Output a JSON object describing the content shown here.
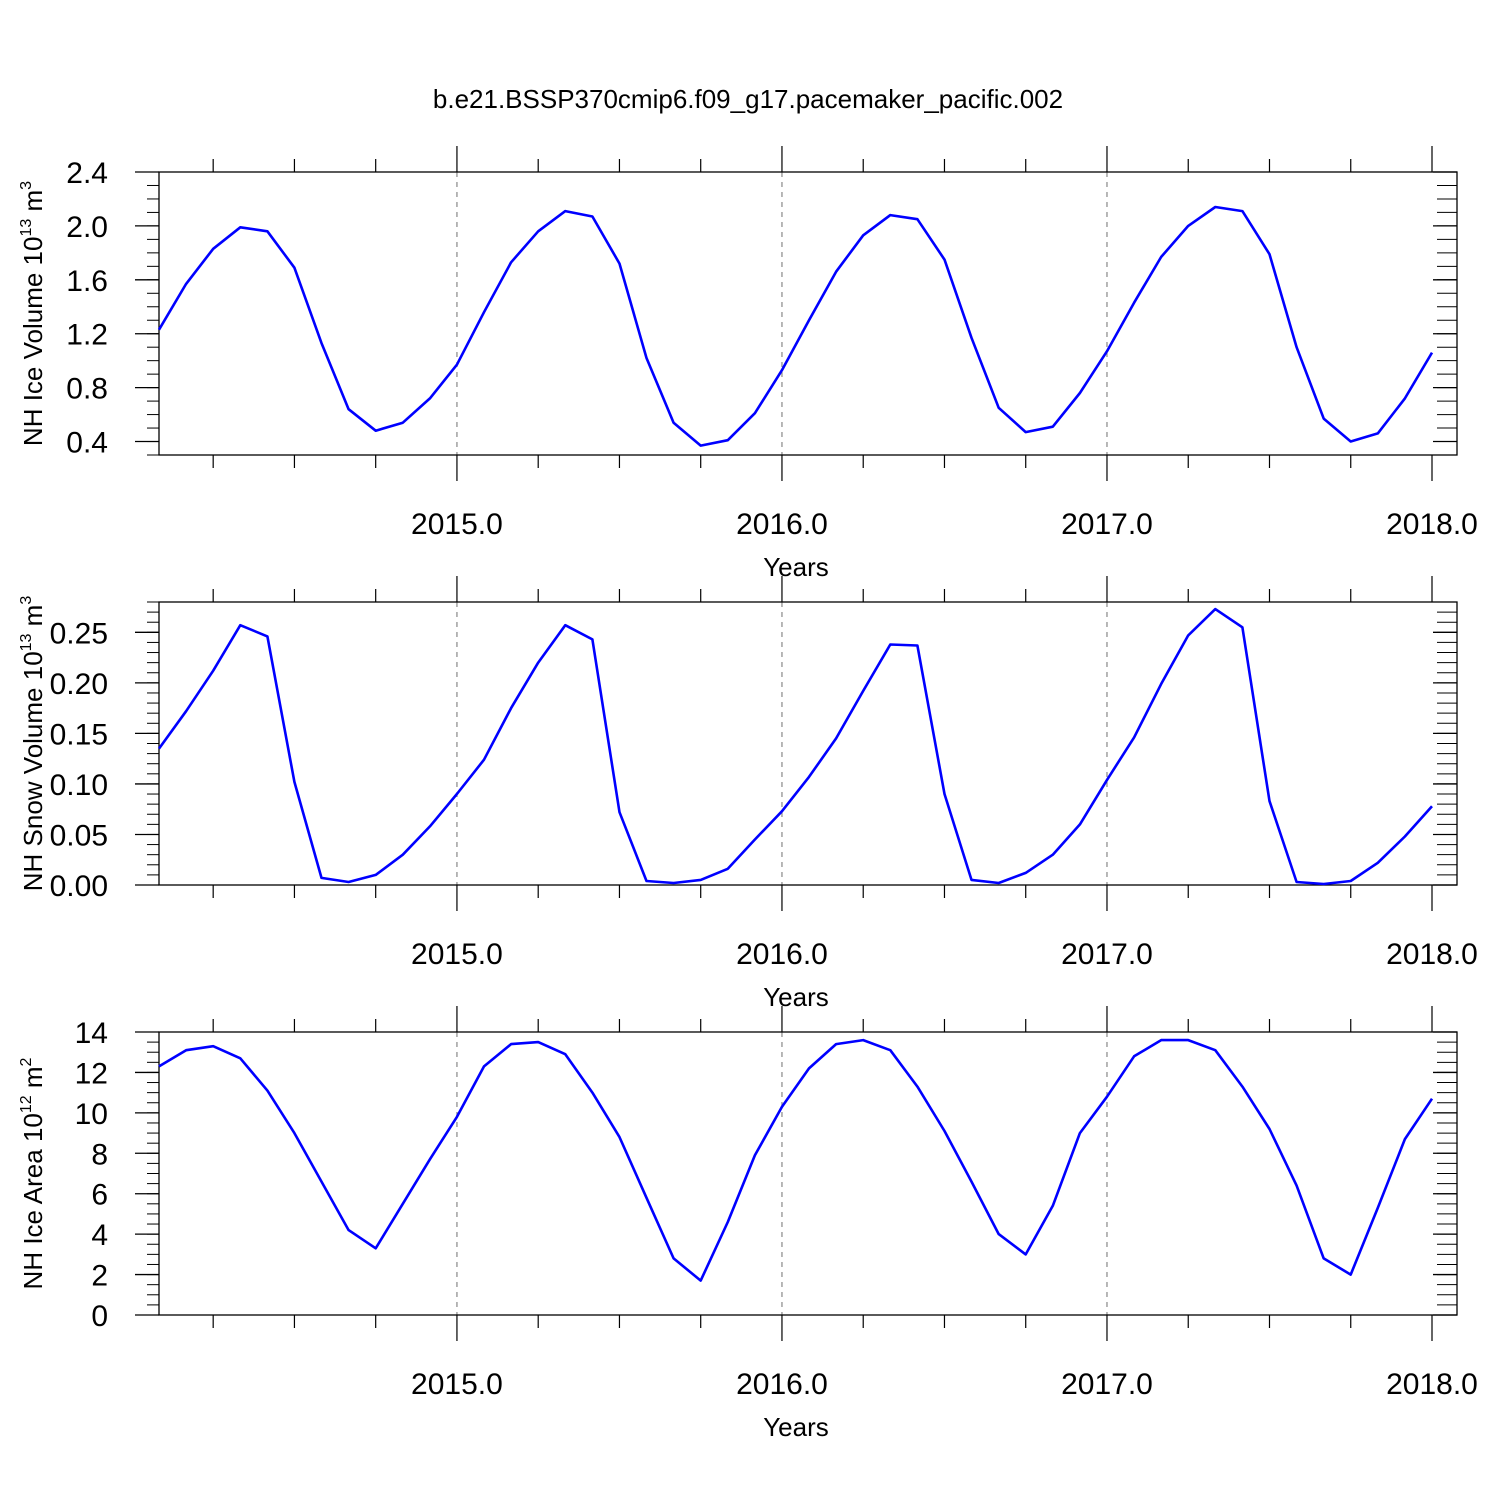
{
  "title": "b.e21.BSSP370cmip6.f09_g17.pacemaker_pacific.002",
  "line_color": "#0000ff",
  "chart_data": [
    {
      "type": "line",
      "ylabel_text": "NH Ice Volume 10",
      "ylabel_exp": "13",
      "ylabel_unit": " m",
      "ylabel_unit_exp": "3",
      "xlabel": "Years",
      "xlim": [
        2014.0833,
        2018.0
      ],
      "ylim": [
        0.3,
        2.4
      ],
      "yticks": [
        0.4,
        0.8,
        1.2,
        1.6,
        2.0,
        2.4
      ],
      "ytick_labels": [
        "0.4",
        "0.8",
        "1.2",
        "1.6",
        "2.0",
        "2.4"
      ],
      "xticks": [
        2015.0,
        2016.0,
        2017.0,
        2018.0
      ],
      "xtick_labels": [
        "2015.0",
        "2016.0",
        "2017.0",
        "2018.0"
      ],
      "grid_x": true,
      "series": [
        {
          "x": [
            2014.0833,
            2014.1667,
            2014.25,
            2014.3333,
            2014.4167,
            2014.5,
            2014.5833,
            2014.6667,
            2014.75,
            2014.8333,
            2014.9167,
            2015.0,
            2015.0833,
            2015.1667,
            2015.25,
            2015.3333,
            2015.4167,
            2015.5,
            2015.5833,
            2015.6667,
            2015.75,
            2015.8333,
            2015.9167,
            2016.0,
            2016.0833,
            2016.1667,
            2016.25,
            2016.3333,
            2016.4167,
            2016.5,
            2016.5833,
            2016.6667,
            2016.75,
            2016.8333,
            2016.9167,
            2017.0,
            2017.0833,
            2017.1667,
            2017.25,
            2017.3333,
            2017.4167,
            2017.5,
            2017.5833,
            2017.6667,
            2017.75,
            2017.8333,
            2017.9167,
            2018.0
          ],
          "y": [
            1.23,
            1.57,
            1.83,
            1.99,
            1.96,
            1.69,
            1.13,
            0.64,
            0.48,
            0.54,
            0.72,
            0.97,
            1.36,
            1.73,
            1.96,
            2.11,
            2.07,
            1.72,
            1.02,
            0.54,
            0.37,
            0.41,
            0.61,
            0.93,
            1.3,
            1.66,
            1.93,
            2.08,
            2.05,
            1.75,
            1.17,
            0.65,
            0.47,
            0.51,
            0.76,
            1.07,
            1.43,
            1.77,
            2.0,
            2.14,
            2.11,
            1.79,
            1.1,
            0.57,
            0.4,
            0.46,
            0.72,
            1.06
          ]
        }
      ]
    },
    {
      "type": "line",
      "ylabel_text": "NH Snow Volume 10",
      "ylabel_exp": "13",
      "ylabel_unit": " m",
      "ylabel_unit_exp": "3",
      "xlabel": "Years",
      "xlim": [
        2014.0833,
        2018.0
      ],
      "ylim": [
        0.0,
        0.28
      ],
      "yticks": [
        0.0,
        0.05,
        0.1,
        0.15,
        0.2,
        0.25
      ],
      "ytick_labels": [
        "0.00",
        "0.05",
        "0.10",
        "0.15",
        "0.20",
        "0.25"
      ],
      "xticks": [
        2015.0,
        2016.0,
        2017.0,
        2018.0
      ],
      "xtick_labels": [
        "2015.0",
        "2016.0",
        "2017.0",
        "2018.0"
      ],
      "grid_x": true,
      "series": [
        {
          "x": [
            2014.0833,
            2014.1667,
            2014.25,
            2014.3333,
            2014.4167,
            2014.5,
            2014.5833,
            2014.6667,
            2014.75,
            2014.8333,
            2014.9167,
            2015.0,
            2015.0833,
            2015.1667,
            2015.25,
            2015.3333,
            2015.4167,
            2015.5,
            2015.5833,
            2015.6667,
            2015.75,
            2015.8333,
            2015.9167,
            2016.0,
            2016.0833,
            2016.1667,
            2016.25,
            2016.3333,
            2016.4167,
            2016.5,
            2016.5833,
            2016.6667,
            2016.75,
            2016.8333,
            2016.9167,
            2017.0,
            2017.0833,
            2017.1667,
            2017.25,
            2017.3333,
            2017.4167,
            2017.5,
            2017.5833,
            2017.6667,
            2017.75,
            2017.8333,
            2017.9167,
            2018.0
          ],
          "y": [
            0.135,
            0.172,
            0.212,
            0.257,
            0.246,
            0.102,
            0.007,
            0.003,
            0.01,
            0.03,
            0.058,
            0.09,
            0.124,
            0.175,
            0.22,
            0.257,
            0.243,
            0.072,
            0.004,
            0.002,
            0.005,
            0.016,
            0.045,
            0.073,
            0.107,
            0.145,
            0.192,
            0.238,
            0.237,
            0.09,
            0.005,
            0.002,
            0.012,
            0.03,
            0.06,
            0.104,
            0.146,
            0.199,
            0.247,
            0.273,
            0.255,
            0.083,
            0.003,
            0.001,
            0.004,
            0.022,
            0.048,
            0.078
          ]
        }
      ]
    },
    {
      "type": "line",
      "ylabel_text": "NH Ice Area 10",
      "ylabel_exp": "12",
      "ylabel_unit": " m",
      "ylabel_unit_exp": "2",
      "xlabel": "Years",
      "xlim": [
        2014.0833,
        2018.0
      ],
      "ylim": [
        0,
        14
      ],
      "yticks": [
        0,
        2,
        4,
        6,
        8,
        10,
        12,
        14
      ],
      "ytick_labels": [
        "0",
        "2",
        "4",
        "6",
        "8",
        "10",
        "12",
        "14"
      ],
      "xticks": [
        2015.0,
        2016.0,
        2017.0,
        2018.0
      ],
      "xtick_labels": [
        "2015.0",
        "2016.0",
        "2017.0",
        "2018.0"
      ],
      "grid_x": true,
      "series": [
        {
          "x": [
            2014.0833,
            2014.1667,
            2014.25,
            2014.3333,
            2014.4167,
            2014.5,
            2014.5833,
            2014.6667,
            2014.75,
            2014.8333,
            2014.9167,
            2015.0,
            2015.0833,
            2015.1667,
            2015.25,
            2015.3333,
            2015.4167,
            2015.5,
            2015.5833,
            2015.6667,
            2015.75,
            2015.8333,
            2015.9167,
            2016.0,
            2016.0833,
            2016.1667,
            2016.25,
            2016.3333,
            2016.4167,
            2016.5,
            2016.5833,
            2016.6667,
            2016.75,
            2016.8333,
            2016.9167,
            2017.0,
            2017.0833,
            2017.1667,
            2017.25,
            2017.3333,
            2017.4167,
            2017.5,
            2017.5833,
            2017.6667,
            2017.75,
            2017.8333,
            2017.9167,
            2018.0
          ],
          "y": [
            12.3,
            13.1,
            13.3,
            12.7,
            11.1,
            9.0,
            6.6,
            4.2,
            3.3,
            5.5,
            7.7,
            9.8,
            12.3,
            13.4,
            13.5,
            12.9,
            11.0,
            8.8,
            5.8,
            2.8,
            1.7,
            4.6,
            7.9,
            10.3,
            12.2,
            13.4,
            13.6,
            13.1,
            11.3,
            9.1,
            6.6,
            4.0,
            3.0,
            5.4,
            9.0,
            10.8,
            12.8,
            13.6,
            13.6,
            13.1,
            11.3,
            9.2,
            6.4,
            2.8,
            2.0,
            5.3,
            8.7,
            10.7
          ]
        }
      ]
    }
  ]
}
